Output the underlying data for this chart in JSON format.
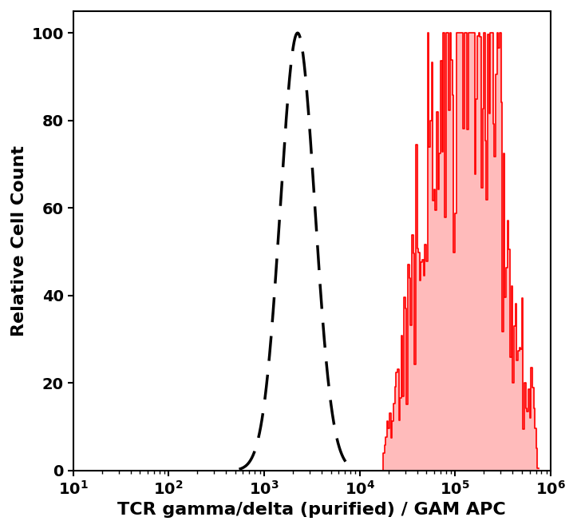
{
  "title": "",
  "xlabel": "TCR gamma/delta (purified) / GAM APC",
  "ylabel": "Relative Cell Count",
  "xlim_log": [
    10,
    1000000
  ],
  "ylim": [
    0,
    105
  ],
  "xlabel_fontsize": 16,
  "ylabel_fontsize": 16,
  "tick_fontsize": 14,
  "background_color": "#ffffff",
  "dashed_color": "#000000",
  "solid_color": "#ff0000",
  "fill_color": "#ffbbbb",
  "dashed_peak_log": 3.35,
  "dashed_peak_log_sigma": 0.18,
  "solid_peak_log": 5.18,
  "solid_peak_log_sigma": 0.38,
  "solid_start_log": 4.25
}
